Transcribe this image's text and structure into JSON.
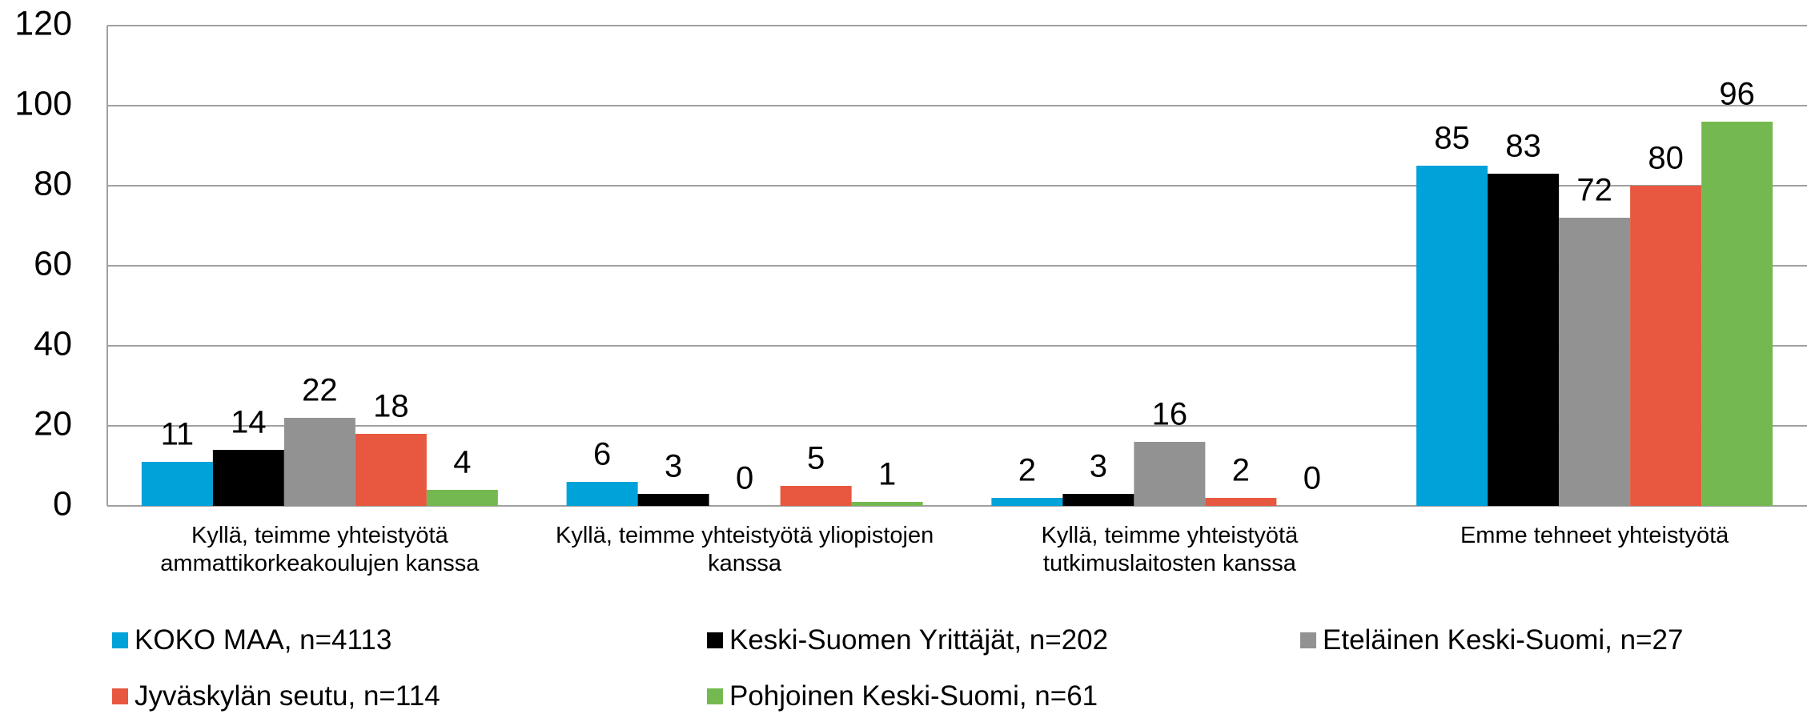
{
  "chart_data": {
    "type": "bar",
    "categories": [
      "Kyllä, teimme yhteistyötä ammattikorkeakoulujen kanssa",
      "Kyllä, teimme yhteistyötä yliopistojen kanssa",
      "Kyllä, teimme yhteistyötä tutkimuslaitosten kanssa",
      "Emme tehneet yhteistyötä"
    ],
    "series": [
      {
        "name": "KOKO MAA, n=4113",
        "color": "#00a2da",
        "values": [
          11,
          6,
          2,
          85
        ]
      },
      {
        "name": "Keski-Suomen Yrittäjät, n=202",
        "color": "#000000",
        "values": [
          14,
          3,
          3,
          83
        ]
      },
      {
        "name": "Eteläinen Keski-Suomi, n=27",
        "color": "#929292",
        "values": [
          22,
          0,
          16,
          72
        ]
      },
      {
        "name": "Jyväskylän seutu, n=114",
        "color": "#e8573f",
        "values": [
          18,
          5,
          2,
          80
        ]
      },
      {
        "name": "Pohjoinen Keski-Suomi, n=61",
        "color": "#74b94f",
        "values": [
          4,
          1,
          0,
          96
        ]
      }
    ],
    "ylim": [
      0,
      120
    ],
    "yticks": [
      0,
      20,
      40,
      60,
      80,
      100,
      120
    ],
    "grid": true,
    "legend": "bottom"
  }
}
